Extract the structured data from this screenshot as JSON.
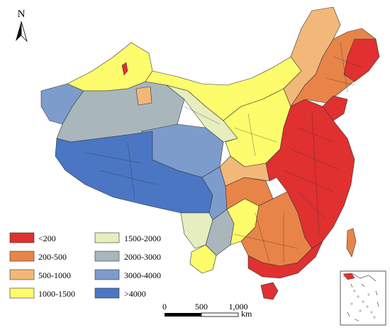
{
  "north": {
    "label": "N"
  },
  "legend": {
    "items": [
      {
        "label": "<200",
        "color": "#e03030"
      },
      {
        "label": "200-500",
        "color": "#e88448"
      },
      {
        "label": "500-1000",
        "color": "#f2b879"
      },
      {
        "label": "1000-1500",
        "color": "#fcfc6c"
      },
      {
        "label": "1500-2000",
        "color": "#e6eebf"
      },
      {
        "label": "2000-3000",
        "color": "#a9b7bd"
      },
      {
        "label": ">4000",
        "color": "#4a76c4"
      },
      {
        "label": "3000-4000",
        "color": "#7d9ccc"
      }
    ]
  },
  "scale": {
    "ticks": [
      "0",
      "500",
      "1,000"
    ],
    "unit": "km"
  }
}
